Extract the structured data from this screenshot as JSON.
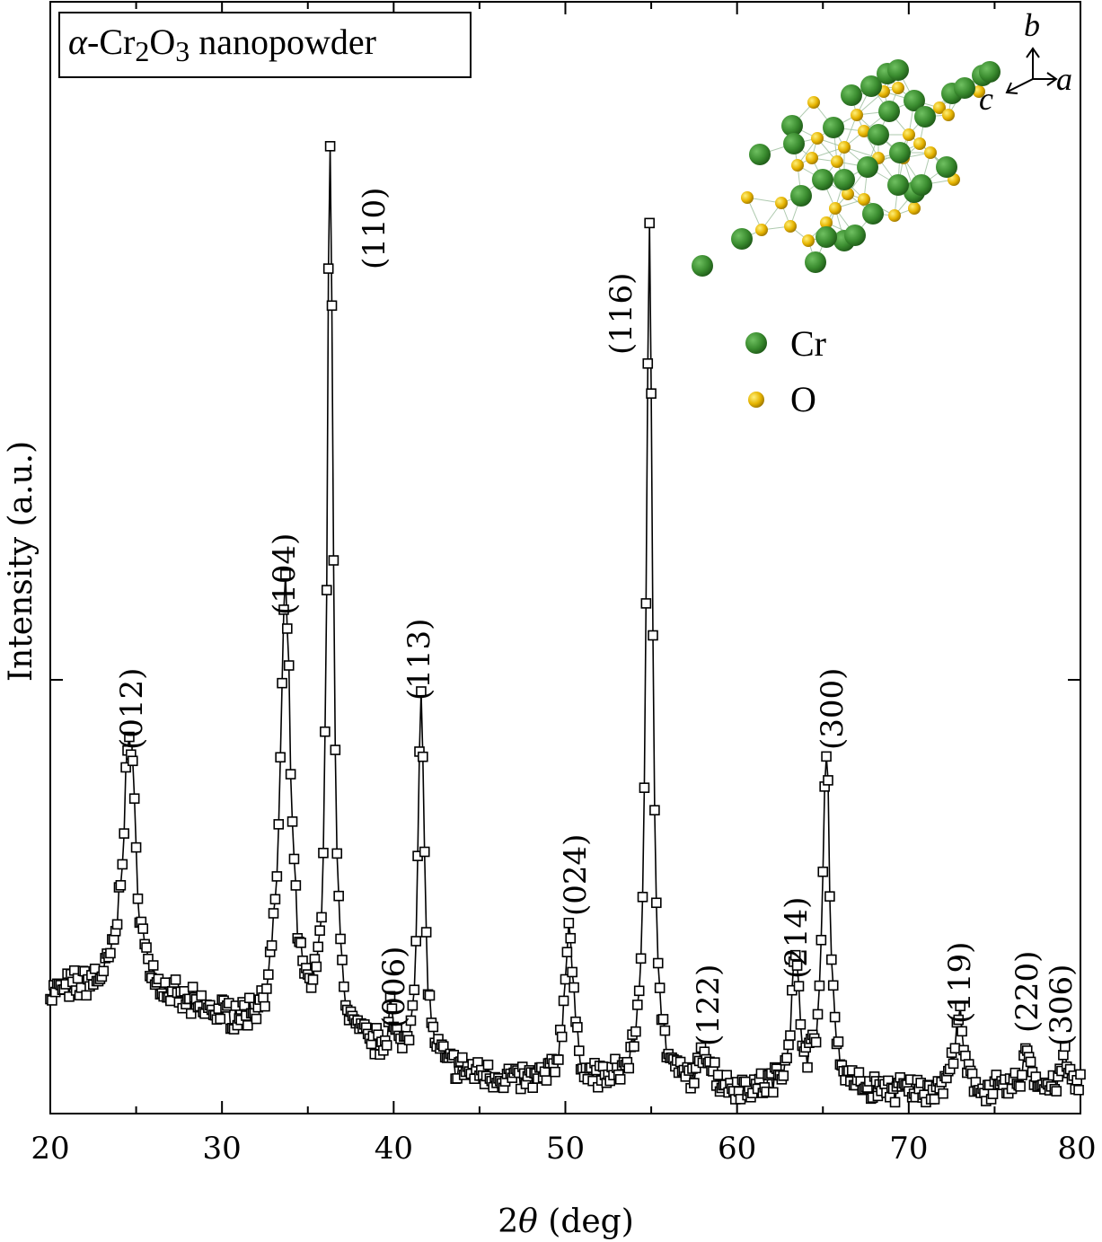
{
  "chart_data": {
    "type": "scatter",
    "title_parts": {
      "alpha": "α",
      "dash_cr": "-Cr",
      "sub2": "2",
      "o": "O",
      "sub3": "3",
      "rest": " nanopowder"
    },
    "xlabel_parts": {
      "two": "2",
      "theta": "θ",
      "unit": " (deg)"
    },
    "ylabel": "Intensity (a.u.)",
    "xlim": [
      20,
      80
    ],
    "ylim": [
      0,
      100
    ],
    "x_ticks": [
      20,
      30,
      40,
      50,
      60,
      70,
      80
    ],
    "x_tick_labels": [
      "20",
      "30",
      "40",
      "50",
      "60",
      "70",
      "80"
    ],
    "grid": false,
    "series_style": {
      "marker": "open-square",
      "line": "solid",
      "color": "#000000"
    },
    "baseline": [
      [
        20,
        12.0
      ],
      [
        22,
        12.5
      ],
      [
        24,
        12.0
      ],
      [
        26,
        11.5
      ],
      [
        28,
        10.5
      ],
      [
        30,
        9.5
      ],
      [
        32,
        8.5
      ],
      [
        34,
        8.0
      ],
      [
        36,
        7.5
      ],
      [
        38,
        6.5
      ],
      [
        40,
        5.5
      ],
      [
        44,
        4.0
      ],
      [
        48,
        3.0
      ],
      [
        52,
        2.8
      ],
      [
        56,
        2.5
      ],
      [
        60,
        2.2
      ],
      [
        64,
        2.4
      ],
      [
        68,
        2.2
      ],
      [
        72,
        2.1
      ],
      [
        76,
        2.2
      ],
      [
        80,
        2.5
      ]
    ],
    "peaks": [
      {
        "label": "(012)",
        "two_theta": 24.6,
        "intensity": 38.0,
        "width": 0.45
      },
      {
        "label": "(104)",
        "two_theta": 33.7,
        "intensity": 51.5,
        "width": 0.38
      },
      {
        "label": "(110)",
        "two_theta": 36.3,
        "intensity": 100.0,
        "width": 0.2
      },
      {
        "label": "(006)",
        "two_theta": 39.8,
        "intensity": 10.5,
        "width": 0.15
      },
      {
        "label": "(113)",
        "two_theta": 41.6,
        "intensity": 42.0,
        "width": 0.22
      },
      {
        "label": "(024)",
        "two_theta": 50.2,
        "intensity": 19.0,
        "width": 0.3
      },
      {
        "label": "(116)",
        "two_theta": 54.9,
        "intensity": 88.0,
        "width": 0.22
      },
      {
        "label": "(122)",
        "two_theta": 58.2,
        "intensity": 6.0,
        "width": 0.4
      },
      {
        "label": "(214)",
        "two_theta": 63.4,
        "intensity": 14.5,
        "width": 0.32
      },
      {
        "label": "(300)",
        "two_theta": 65.2,
        "intensity": 37.0,
        "width": 0.25
      },
      {
        "label": "(119)",
        "two_theta": 72.9,
        "intensity": 10.0,
        "width": 0.3
      },
      {
        "label": "(220)",
        "two_theta": 76.9,
        "intensity": 6.5,
        "width": 0.28
      },
      {
        "label": "(306)",
        "two_theta": 79.1,
        "intensity": 5.5,
        "width": 0.25
      }
    ],
    "legend": [
      {
        "label": "Cr",
        "color": "#3a8c2f"
      },
      {
        "label": "O",
        "color": "#e6b400"
      }
    ],
    "legend_placement": "upper-right, below crystal structure inset",
    "inset": {
      "content": "crystal structure of α-Cr2O3",
      "atom_colors": {
        "Cr": "#3a8c2f",
        "O": "#e6b400"
      }
    },
    "axis_labels": {
      "a": "a",
      "b": "b",
      "c": "c"
    }
  }
}
